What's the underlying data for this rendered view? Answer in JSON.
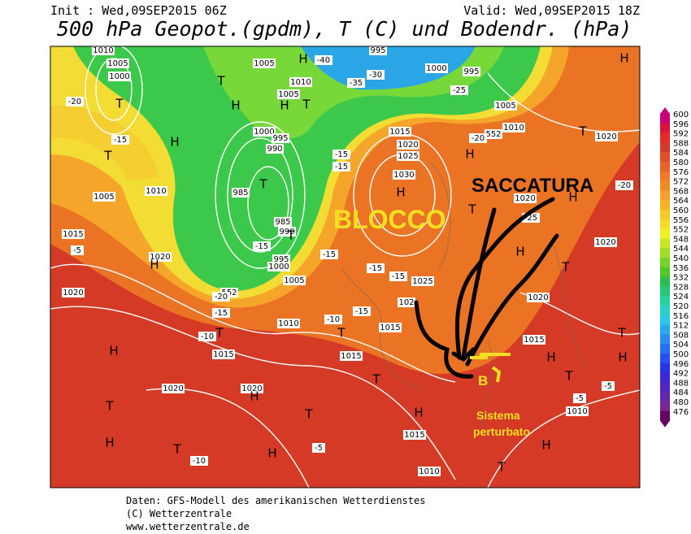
{
  "header": {
    "init": "Init : Wed,09SEP2015 06Z",
    "valid": "Valid: Wed,09SEP2015 18Z",
    "title": "500 hPa Geopot.(gpdm), T (C) und Bodendr. (hPa)"
  },
  "map": {
    "labels": [
      "1010",
      "1005",
      "1000",
      "T",
      "-20",
      "-15",
      "T",
      "H",
      "1005",
      "1010",
      "1015",
      "-5",
      "1020",
      "H",
      "1020",
      "H",
      "1020",
      "T",
      "H",
      "T",
      "-10",
      "1005",
      "H",
      "-40",
      "995",
      "T",
      "H",
      "1010",
      "1005",
      "T",
      "H",
      "-35",
      "-30",
      "1000",
      "995",
      "-25",
      "1005",
      "1010",
      "552",
      "1015",
      "1020",
      "1025",
      "1030",
      "H",
      "1000",
      "995",
      "990",
      "T",
      "985",
      "985",
      "990",
      "T",
      "-15",
      "995",
      "1000",
      "1005",
      "552",
      "-20",
      "-15",
      "1010",
      "T",
      "-10",
      "1015",
      "1015",
      "T",
      "-10",
      "-15",
      "102",
      "1025",
      "-15",
      "1015",
      "T",
      "H",
      "1015",
      "1010",
      "T",
      "H",
      "1010",
      "-5",
      "T",
      "H",
      "1015",
      "-5",
      "T",
      "H",
      "1020",
      "1020",
      "H",
      "T",
      "-25",
      "1020",
      "H",
      "-20",
      "T",
      "1020",
      "H",
      "-20",
      "H",
      "T",
      "-15",
      "-15",
      "-15",
      "-15",
      "H",
      "-5",
      "T",
      "1020",
      "H"
    ]
  },
  "annotations": {
    "saccatura": "SACCATURA",
    "blocco": "BLOCCO",
    "b": "B",
    "sistema": "Sistema",
    "perturbato": "perturbato"
  },
  "colorbar": [
    "600",
    "596",
    "592",
    "588",
    "584",
    "580",
    "576",
    "572",
    "568",
    "564",
    "560",
    "556",
    "552",
    "548",
    "544",
    "540",
    "536",
    "532",
    "528",
    "524",
    "520",
    "516",
    "512",
    "508",
    "504",
    "500",
    "496",
    "492",
    "488",
    "484",
    "480",
    "476"
  ],
  "colorbar_colors": [
    "#c80078",
    "#dc143c",
    "#e62828",
    "#d23c28",
    "#e05028",
    "#e66428",
    "#f07828",
    "#f08c28",
    "#f5a028",
    "#f5b428",
    "#f5c828",
    "#f5dc28",
    "#f0f028",
    "#c8e628",
    "#a0dc28",
    "#78d228",
    "#50c828",
    "#28be50",
    "#28c878",
    "#28d2a0",
    "#28d2c8",
    "#28c8e6",
    "#28aaf0",
    "#288cf0",
    "#286ef0",
    "#2850f0",
    "#2832e6",
    "#3c28d2",
    "#5028be",
    "#6428aa",
    "#782896",
    "#640064"
  ],
  "footer": {
    "line1": "Daten: GFS-Modell des amerikanischen Wetterdienstes",
    "line2": "(C) Wetterzentrale",
    "line3": "www.wetterzentrale.de"
  }
}
